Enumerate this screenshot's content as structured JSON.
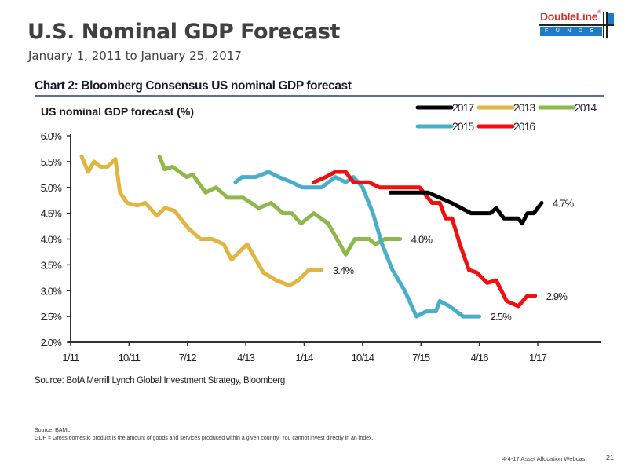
{
  "header": {
    "title": "U.S. Nominal GDP Forecast",
    "subtitle": "January 1, 2011 to January 25, 2017"
  },
  "logo": {
    "name": "DoubleLine",
    "registered": "®",
    "band_text": "FUNDS",
    "brand_red": "#d0312d",
    "brand_blue": "#1f7cc4"
  },
  "chart_data": {
    "type": "line",
    "title": "Chart 2: Bloomberg Consensus US nominal GDP forecast",
    "ylabel": "US nominal GDP forecast (%)",
    "xlabel": "",
    "x_unit": "months since Jan 2011",
    "xlim": [
      0,
      72
    ],
    "ylim": [
      2.0,
      6.0
    ],
    "y_ticks": [
      2.0,
      2.5,
      3.0,
      3.5,
      4.0,
      4.5,
      5.0,
      5.5,
      6.0
    ],
    "y_tick_labels": [
      "2.0%",
      "2.5%",
      "3.0%",
      "3.5%",
      "4.0%",
      "4.5%",
      "5.0%",
      "5.5%",
      "6.0%"
    ],
    "x_ticks": [
      0,
      9,
      18,
      27,
      36,
      45,
      54,
      63,
      72
    ],
    "x_tick_labels": [
      "1/11",
      "10/11",
      "7/12",
      "4/13",
      "1/14",
      "10/14",
      "7/15",
      "4/16",
      "1/17"
    ],
    "grid": false,
    "legend_position": "top-right",
    "legend_rows": [
      [
        "2017",
        "2013",
        "2014"
      ],
      [
        "2015",
        "2016"
      ]
    ],
    "series": [
      {
        "name": "2013",
        "color": "#e0b542",
        "end_label": "3.4%",
        "x": [
          1.7,
          2.7,
          3.6,
          4.6,
          5.7,
          6.9,
          7.6,
          8.7,
          10.3,
          11.5,
          13.3,
          14.5,
          16.0,
          18.2,
          20.0,
          21.8,
          23.6,
          24.8,
          27.2,
          29.7,
          31.7,
          33.7,
          35.1,
          36.7,
          38.7
        ],
        "y": [
          5.6,
          5.3,
          5.5,
          5.4,
          5.4,
          5.55,
          4.9,
          4.7,
          4.65,
          4.7,
          4.45,
          4.6,
          4.55,
          4.2,
          4.0,
          4.0,
          3.9,
          3.6,
          3.9,
          3.35,
          3.2,
          3.1,
          3.2,
          3.4,
          3.4
        ]
      },
      {
        "name": "2014",
        "color": "#8db84a",
        "end_label": "4.0%",
        "x": [
          13.7,
          14.5,
          15.7,
          17.9,
          18.8,
          20.8,
          22.4,
          24.2,
          26.6,
          29.0,
          30.9,
          32.7,
          34.1,
          35.5,
          37.5,
          39.7,
          42.4,
          43.8,
          46.0,
          47.0,
          48.4,
          50.8
        ],
        "y": [
          5.6,
          5.35,
          5.4,
          5.2,
          5.25,
          4.9,
          5.0,
          4.8,
          4.8,
          4.6,
          4.7,
          4.5,
          4.5,
          4.3,
          4.5,
          4.3,
          3.7,
          4.0,
          4.0,
          3.9,
          4.0,
          4.0
        ]
      },
      {
        "name": "2015",
        "color": "#4baec9",
        "end_label": "2.5%",
        "x": [
          25.4,
          26.4,
          28.5,
          30.5,
          32.1,
          34.1,
          35.7,
          38.7,
          40.8,
          42.4,
          43.6,
          45.0,
          46.6,
          48.0,
          49.6,
          51.5,
          53.3,
          54.8,
          56.3,
          56.9,
          58.4,
          60.5,
          63.0
        ],
        "y": [
          5.1,
          5.2,
          5.2,
          5.3,
          5.2,
          5.1,
          5.0,
          5.0,
          5.2,
          5.1,
          5.2,
          5.0,
          4.5,
          3.9,
          3.4,
          3.0,
          2.5,
          2.6,
          2.6,
          2.8,
          2.7,
          2.5,
          2.5
        ]
      },
      {
        "name": "2016",
        "color": "#f01010",
        "end_label": "2.9%",
        "x": [
          37.5,
          39.3,
          40.8,
          42.4,
          43.6,
          46.0,
          47.6,
          50.8,
          53.8,
          55.7,
          56.9,
          57.8,
          58.8,
          60.0,
          61.4,
          62.6,
          64.2,
          65.6,
          67.2,
          69.0,
          70.4,
          71.6
        ],
        "y": [
          5.1,
          5.2,
          5.3,
          5.3,
          5.1,
          5.1,
          5.0,
          5.0,
          5.0,
          4.7,
          4.7,
          4.4,
          4.4,
          3.9,
          3.4,
          3.35,
          3.15,
          3.2,
          2.8,
          2.7,
          2.9,
          2.9
        ]
      },
      {
        "name": "2017",
        "color": "#000000",
        "end_label": "4.7%",
        "x": [
          49.3,
          53.3,
          55.1,
          56.9,
          58.7,
          61.7,
          64.7,
          65.6,
          66.8,
          69.0,
          69.6,
          70.4,
          71.4,
          72.6
        ],
        "y": [
          4.9,
          4.9,
          4.9,
          4.8,
          4.7,
          4.5,
          4.5,
          4.6,
          4.4,
          4.4,
          4.3,
          4.5,
          4.5,
          4.7
        ]
      }
    ],
    "source": "Source: BofA Merrill Lynch Global Investment Strategy, Bloomberg"
  },
  "footer": {
    "source": "Source: BAML",
    "note": "GDP = Gross domestic product is the amount of goods and services produced within a given country. You cannot invest directly in an index.",
    "webcast": "4-4-17 Asset Allocation Webcast",
    "page_number": "21"
  }
}
